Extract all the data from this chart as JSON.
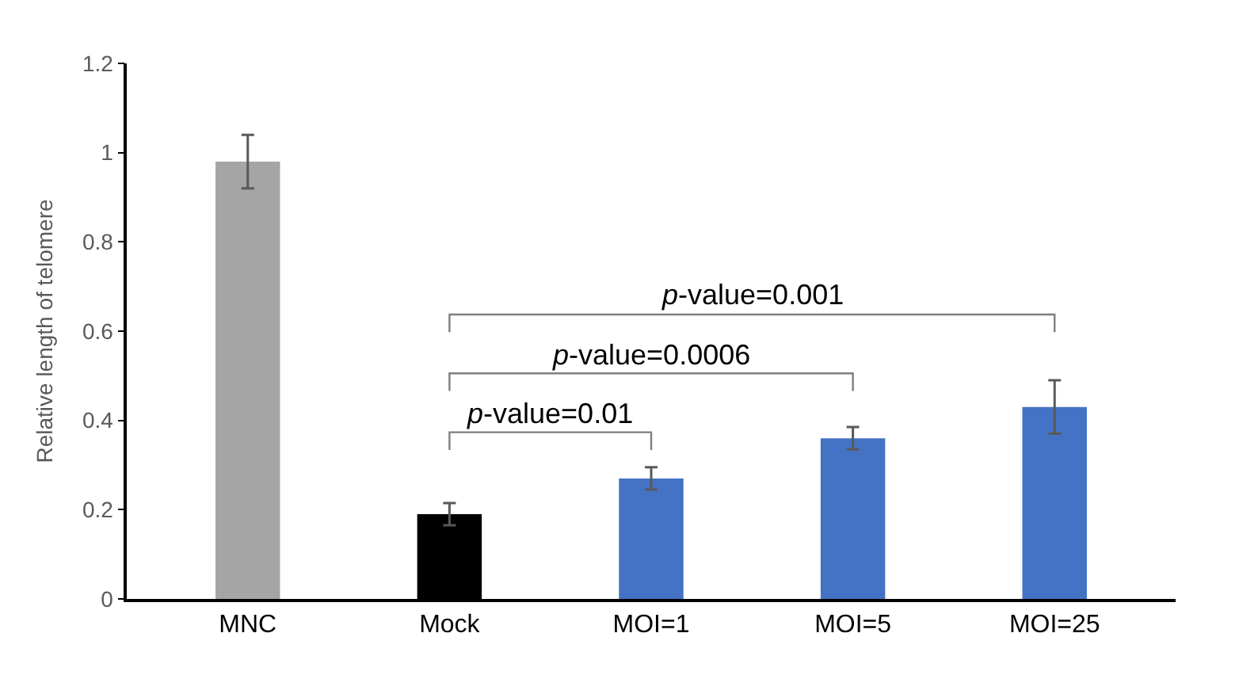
{
  "chart_data": {
    "type": "bar",
    "ylabel": "Relative length of telomere",
    "categories": [
      "MNC",
      "Mock",
      "MOI=1",
      "MOI=5",
      "MOI=25"
    ],
    "values": [
      0.98,
      0.19,
      0.27,
      0.36,
      0.43
    ],
    "errors": [
      0.06,
      0.025,
      0.025,
      0.025,
      0.06
    ],
    "colors": [
      "#a5a5a5",
      "#000000",
      "#4472c4",
      "#4472c4",
      "#4472c4"
    ],
    "ylim": [
      0,
      1.2
    ],
    "yticks": [
      0,
      0.2,
      0.4,
      0.6,
      0.8,
      1,
      1.2
    ],
    "annotations": [
      "p-value=0.01",
      "p-value=0.0006",
      "p-value=0.001"
    ]
  }
}
